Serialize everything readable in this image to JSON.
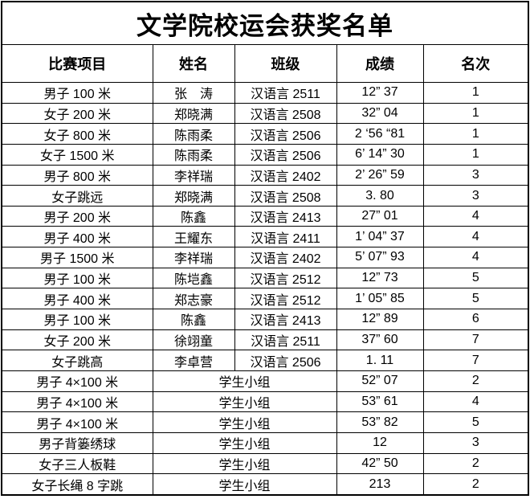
{
  "title": "文学院校运会获奖名单",
  "table": {
    "headers": [
      "比赛项目",
      "姓名",
      "班级",
      "成绩",
      "名次"
    ],
    "group_label": "学生小组",
    "rows": [
      {
        "event": "男子 100 米",
        "name": "张　涛",
        "class": "汉语言 2511",
        "score": "12” 37",
        "rank": "1"
      },
      {
        "event": "女子 200 米",
        "name": "郑晓满",
        "class": "汉语言 2508",
        "score": "32” 04",
        "rank": "1"
      },
      {
        "event": "女子 800 米",
        "name": "陈雨柔",
        "class": "汉语言 2506",
        "score": "2 ‘56 “81",
        "rank": "1"
      },
      {
        "event": "女子 1500 米",
        "name": "陈雨柔",
        "class": "汉语言 2506",
        "score": "6’ 14” 30",
        "rank": "1"
      },
      {
        "event": "男子 800 米",
        "name": "李祥瑞",
        "class": "汉语言 2402",
        "score": "2’ 26” 59",
        "rank": "3"
      },
      {
        "event": "女子跳远",
        "name": "郑晓满",
        "class": "汉语言 2508",
        "score": "3. 80",
        "rank": "3"
      },
      {
        "event": "男子 200 米",
        "name": "陈鑫",
        "class": "汉语言 2413",
        "score": "27” 01",
        "rank": "4"
      },
      {
        "event": "男子 400 米",
        "name": "王耀东",
        "class": "汉语言 2411",
        "score": "1’ 04” 37",
        "rank": "4"
      },
      {
        "event": "男子 1500 米",
        "name": "李祥瑞",
        "class": "汉语言 2402",
        "score": "5’ 07” 93",
        "rank": "4"
      },
      {
        "event": "男子 100 米",
        "name": "陈垲鑫",
        "class": "汉语言 2512",
        "score": "12” 73",
        "rank": "5"
      },
      {
        "event": "男子 400 米",
        "name": "郑志豪",
        "class": "汉语言 2512",
        "score": "1’ 05” 85",
        "rank": "5"
      },
      {
        "event": "男子 100 米",
        "name": "陈鑫",
        "class": "汉语言 2413",
        "score": "12” 89",
        "rank": "6"
      },
      {
        "event": "女子 200 米",
        "name": "徐翊童",
        "class": "汉语言 2511",
        "score": "37” 60",
        "rank": "7"
      },
      {
        "event": "女子跳高",
        "name": "李卓营",
        "class": "汉语言 2506",
        "score": "1. 11",
        "rank": "7"
      },
      {
        "event": "男子 4×100 米",
        "group": "学生小组",
        "score": "52” 07",
        "rank": "2"
      },
      {
        "event": "男子 4×100 米",
        "group": "学生小组",
        "score": "53” 61",
        "rank": "4"
      },
      {
        "event": "男子 4×100 米",
        "group": "学生小组",
        "score": "53” 82",
        "rank": "5"
      },
      {
        "event": "男子背篓绣球",
        "group": "学生小组",
        "score": "12",
        "rank": "3"
      },
      {
        "event": "女子三人板鞋",
        "group": "学生小组",
        "score": "42” 50",
        "rank": "2"
      },
      {
        "event": "女子长绳 8 字跳",
        "group": "学生小组",
        "score": "213",
        "rank": "2"
      }
    ]
  }
}
